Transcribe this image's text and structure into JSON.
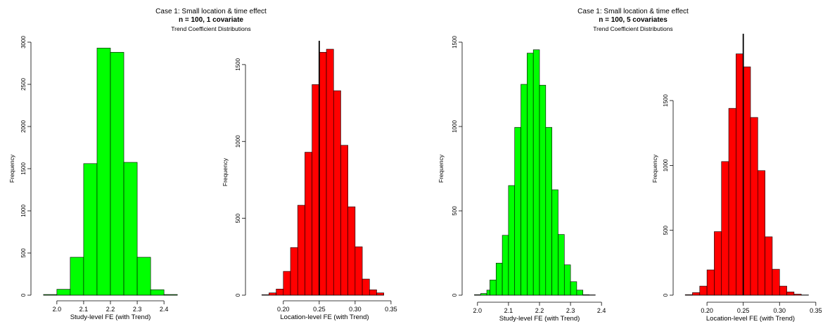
{
  "figure": {
    "groups": [
      {
        "title": "Case 1: Small location & time effect",
        "subtitle": "n = 100, 1 covariate",
        "caption": "Trend Coefficient Distributions"
      },
      {
        "title": "Case 1: Small location & time effect",
        "subtitle": "n = 100, 5 covariates",
        "caption": "Trend Coefficient Distributions"
      }
    ]
  },
  "colors": {
    "study": "#00ff00",
    "location": "#ff0000",
    "refline": "#000000",
    "axis": "#000000"
  },
  "chart_data": [
    {
      "type": "bar",
      "xlabel": "Study-level FE (with Trend)",
      "ylabel": "Frequency",
      "xlim": [
        1.94,
        2.46
      ],
      "ylim": [
        0,
        3000
      ],
      "xticks": [
        2.0,
        2.1,
        2.2,
        2.3,
        2.4
      ],
      "xtick_labels": [
        "2.0",
        "2.1",
        "2.2",
        "2.3",
        "2.4"
      ],
      "yticks": [
        0,
        500,
        1000,
        1500,
        2000,
        2500,
        3000
      ],
      "ytick_labels": [
        "0",
        "500",
        "1000",
        "1500",
        "2000",
        "2500",
        "3000"
      ],
      "bin_edges": [
        1.95,
        2.0,
        2.05,
        2.1,
        2.15,
        2.2,
        2.25,
        2.3,
        2.35,
        2.4,
        2.45
      ],
      "values": [
        8,
        70,
        450,
        1560,
        2930,
        2880,
        1575,
        450,
        65,
        8
      ],
      "color": "#00ff00",
      "vline": null
    },
    {
      "type": "bar",
      "xlabel": "Location-level FE (with Trend)",
      "ylabel": "Frequency",
      "xlim": [
        0.16,
        0.355
      ],
      "ylim": [
        0,
        1600
      ],
      "xticks": [
        0.2,
        0.25,
        0.3,
        0.35
      ],
      "xtick_labels": [
        "0.20",
        "0.25",
        "0.30",
        "0.35"
      ],
      "yticks": [
        0,
        500,
        1000,
        1500
      ],
      "ytick_labels": [
        "0",
        "500",
        "1000",
        "1500"
      ],
      "bin_edges": [
        0.17,
        0.18,
        0.19,
        0.2,
        0.21,
        0.22,
        0.23,
        0.24,
        0.25,
        0.26,
        0.27,
        0.28,
        0.29,
        0.3,
        0.31,
        0.32,
        0.33,
        0.34
      ],
      "values": [
        3,
        15,
        40,
        155,
        310,
        585,
        930,
        1370,
        1580,
        1600,
        1330,
        975,
        575,
        315,
        105,
        35,
        15
      ],
      "color": "#ff0000",
      "vline": 0.25
    },
    {
      "type": "bar",
      "xlabel": "Study-level FE (with Trend)",
      "ylabel": "Frequency",
      "xlim": [
        1.98,
        2.42
      ],
      "ylim": [
        0,
        1500
      ],
      "xticks": [
        2.0,
        2.1,
        2.2,
        2.3,
        2.4
      ],
      "xtick_labels": [
        "2.0",
        "2.1",
        "2.2",
        "2.3",
        "2.4"
      ],
      "yticks": [
        0,
        500,
        1000,
        1500
      ],
      "ytick_labels": [
        "0",
        "500",
        "1000",
        "1500"
      ],
      "bin_edges": [
        1.99,
        2.01,
        2.03,
        2.04,
        2.06,
        2.08,
        2.1,
        2.12,
        2.14,
        2.16,
        2.18,
        2.2,
        2.22,
        2.24,
        2.26,
        2.28,
        2.3,
        2.32,
        2.34,
        2.36,
        2.38
      ],
      "values": [
        3,
        10,
        30,
        90,
        190,
        355,
        650,
        995,
        1250,
        1435,
        1455,
        1245,
        995,
        625,
        360,
        180,
        80,
        30,
        3,
        2
      ],
      "color": "#00ff00",
      "vline": null
    },
    {
      "type": "bar",
      "xlabel": "Location-level FE (with Trend)",
      "ylabel": "Frequency",
      "xlim": [
        0.165,
        0.355
      ],
      "ylim": [
        0,
        1950
      ],
      "xticks": [
        0.2,
        0.25,
        0.3,
        0.35
      ],
      "xtick_labels": [
        "0.20",
        "0.25",
        "0.30",
        "0.35"
      ],
      "yticks": [
        0,
        500,
        1000,
        1500
      ],
      "ytick_labels": [
        "0",
        "500",
        "1000",
        "1500"
      ],
      "bin_edges": [
        0.17,
        0.18,
        0.19,
        0.2,
        0.21,
        0.22,
        0.23,
        0.24,
        0.25,
        0.26,
        0.27,
        0.28,
        0.29,
        0.3,
        0.31,
        0.32,
        0.33,
        0.34
      ],
      "values": [
        4,
        20,
        70,
        195,
        490,
        1030,
        1440,
        1860,
        1760,
        1370,
        960,
        450,
        200,
        70,
        25,
        8,
        2
      ],
      "color": "#ff0000",
      "vline": 0.25
    }
  ]
}
